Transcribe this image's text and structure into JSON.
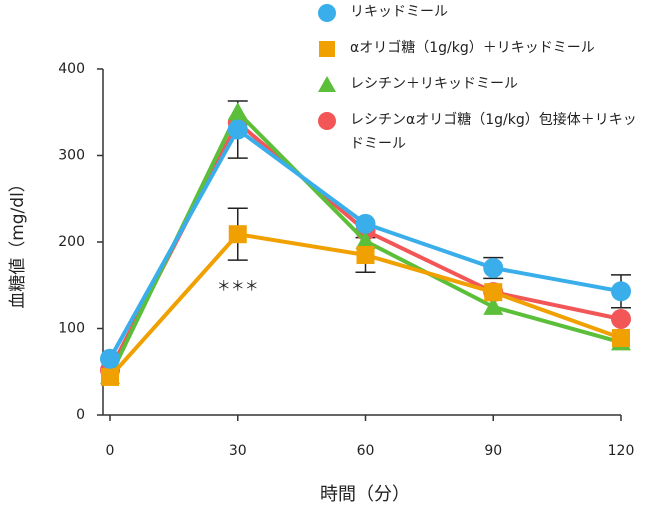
{
  "chart_data": {
    "type": "line",
    "x_label": "時間（分）",
    "y_label": "血糖値（mg/dl）",
    "x": [
      0,
      30,
      60,
      90,
      120
    ],
    "xlim": [
      0,
      120
    ],
    "xticks": [
      0,
      30,
      60,
      90,
      120
    ],
    "ylim": [
      0,
      400
    ],
    "yticks": [
      0,
      100,
      200,
      300,
      400
    ],
    "annotation": "＊＊＊",
    "series": [
      {
        "name": "リキッドミール",
        "color": "#3aaeea",
        "marker": "circle",
        "values": [
          65,
          330,
          221,
          170,
          143
        ],
        "errors": [
          null,
          33,
          null,
          12,
          19
        ]
      },
      {
        "name": "αオリゴ糖（1g/kg）＋リキッドミール",
        "color": "#f0a000",
        "marker": "square",
        "values": [
          44,
          209,
          185,
          142,
          89
        ],
        "errors": [
          null,
          30,
          20,
          null,
          null
        ]
      },
      {
        "name": "レシチン＋リキッドミール",
        "color": "#5cbf3a",
        "marker": "triangle",
        "values": [
          45,
          350,
          201,
          125,
          84
        ],
        "errors": [
          null,
          null,
          null,
          null,
          null
        ]
      },
      {
        "name": "レシチンαオリゴ糖（1g/kg）包接体＋リキッドミール",
        "color": "#f25656",
        "marker": "circle",
        "values": [
          52,
          338,
          213,
          142,
          111
        ],
        "errors": [
          null,
          null,
          null,
          null,
          null
        ]
      }
    ]
  }
}
